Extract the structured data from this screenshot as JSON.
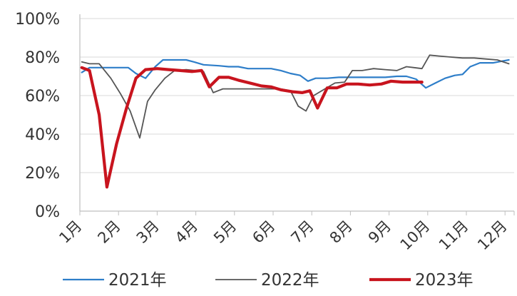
{
  "chart_data": {
    "type": "line",
    "title": "",
    "xlabel": "",
    "ylabel": "",
    "ylim": [
      0,
      100
    ],
    "xlim": [
      1,
      12.1
    ],
    "y_ticks": [
      "0%",
      "20%",
      "40%",
      "60%",
      "80%",
      "100%"
    ],
    "x_ticks": [
      "1月",
      "2月",
      "3月",
      "4月",
      "5月",
      "6月",
      "7月",
      "8月",
      "9月",
      "10月",
      "11月",
      "12月"
    ],
    "grid": "horizontal",
    "legend_position": "bottom",
    "series": [
      {
        "name": "2021年",
        "color": "#2e7ec9",
        "points": [
          [
            1.05,
            72
          ],
          [
            1.25,
            74.5
          ],
          [
            1.6,
            74.5
          ],
          [
            2.0,
            74.5
          ],
          [
            2.25,
            74.5
          ],
          [
            2.45,
            71.5
          ],
          [
            2.7,
            69
          ],
          [
            2.95,
            75
          ],
          [
            3.15,
            78.5
          ],
          [
            3.5,
            78.5
          ],
          [
            3.75,
            78.5
          ],
          [
            3.95,
            77.5
          ],
          [
            4.2,
            76
          ],
          [
            4.6,
            75.5
          ],
          [
            4.85,
            75
          ],
          [
            5.1,
            75
          ],
          [
            5.35,
            74
          ],
          [
            5.7,
            74
          ],
          [
            5.95,
            74
          ],
          [
            6.2,
            73
          ],
          [
            6.45,
            71.5
          ],
          [
            6.7,
            70.5
          ],
          [
            6.9,
            67.5
          ],
          [
            7.1,
            69
          ],
          [
            7.4,
            69
          ],
          [
            7.7,
            69.5
          ],
          [
            8.0,
            69.5
          ],
          [
            8.3,
            69.5
          ],
          [
            8.6,
            69.5
          ],
          [
            8.9,
            69.5
          ],
          [
            9.2,
            70
          ],
          [
            9.45,
            70
          ],
          [
            9.7,
            68.5
          ],
          [
            9.95,
            64
          ],
          [
            10.2,
            66.5
          ],
          [
            10.45,
            69
          ],
          [
            10.7,
            70.5
          ],
          [
            10.9,
            71
          ],
          [
            11.1,
            75
          ],
          [
            11.35,
            77
          ],
          [
            11.7,
            77
          ],
          [
            11.95,
            78
          ],
          [
            12.1,
            78.5
          ]
        ]
      },
      {
        "name": "2022年",
        "color": "#555555",
        "points": [
          [
            1.05,
            77.5
          ],
          [
            1.25,
            76.5
          ],
          [
            1.5,
            76.5
          ],
          [
            1.8,
            69
          ],
          [
            2.05,
            61
          ],
          [
            2.3,
            52
          ],
          [
            2.55,
            38
          ],
          [
            2.75,
            57
          ],
          [
            2.95,
            63
          ],
          [
            3.2,
            69
          ],
          [
            3.45,
            73
          ],
          [
            3.75,
            73.5
          ],
          [
            4.0,
            73
          ],
          [
            4.2,
            72.5
          ],
          [
            4.45,
            61.5
          ],
          [
            4.7,
            63.5
          ],
          [
            5.0,
            63.5
          ],
          [
            5.3,
            63.5
          ],
          [
            5.65,
            63.5
          ],
          [
            5.95,
            63.5
          ],
          [
            6.2,
            63.5
          ],
          [
            6.45,
            62.5
          ],
          [
            6.65,
            54.5
          ],
          [
            6.85,
            52
          ],
          [
            7.05,
            60
          ],
          [
            7.3,
            63
          ],
          [
            7.6,
            66.5
          ],
          [
            7.85,
            67
          ],
          [
            8.05,
            73
          ],
          [
            8.3,
            73
          ],
          [
            8.6,
            74
          ],
          [
            8.9,
            73.5
          ],
          [
            9.2,
            73
          ],
          [
            9.45,
            75
          ],
          [
            9.65,
            74.5
          ],
          [
            9.85,
            74
          ],
          [
            10.05,
            81
          ],
          [
            10.3,
            80.5
          ],
          [
            10.6,
            80
          ],
          [
            10.9,
            79.5
          ],
          [
            11.2,
            79.5
          ],
          [
            11.5,
            79
          ],
          [
            11.8,
            78.5
          ],
          [
            12.1,
            76.5
          ]
        ]
      },
      {
        "name": "2023年",
        "color": "#c8141e",
        "points": [
          [
            1.05,
            74.5
          ],
          [
            1.25,
            73
          ],
          [
            1.5,
            50
          ],
          [
            1.7,
            12.5
          ],
          [
            1.95,
            35
          ],
          [
            2.2,
            53
          ],
          [
            2.45,
            69
          ],
          [
            2.7,
            73.5
          ],
          [
            3.0,
            74
          ],
          [
            3.3,
            73.5
          ],
          [
            3.6,
            73
          ],
          [
            3.9,
            72.5
          ],
          [
            4.15,
            73
          ],
          [
            4.35,
            64.5
          ],
          [
            4.6,
            69.5
          ],
          [
            4.85,
            69.5
          ],
          [
            5.1,
            68
          ],
          [
            5.4,
            66.5
          ],
          [
            5.7,
            65
          ],
          [
            5.95,
            64.5
          ],
          [
            6.2,
            63
          ],
          [
            6.5,
            62
          ],
          [
            6.75,
            61.5
          ],
          [
            6.95,
            62.5
          ],
          [
            7.15,
            53.5
          ],
          [
            7.4,
            64
          ],
          [
            7.65,
            64
          ],
          [
            7.9,
            66
          ],
          [
            8.2,
            66
          ],
          [
            8.5,
            65.5
          ],
          [
            8.8,
            66
          ],
          [
            9.05,
            67.5
          ],
          [
            9.35,
            67
          ],
          [
            9.6,
            67
          ],
          [
            9.85,
            67
          ]
        ]
      }
    ]
  }
}
